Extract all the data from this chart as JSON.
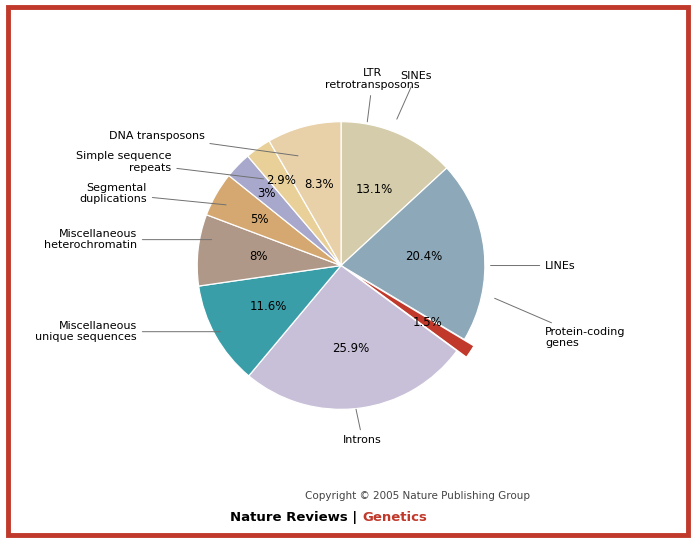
{
  "slices": [
    {
      "label": "SINEs",
      "value": 13.1,
      "color": "#d4ccaa",
      "pct": "13.1%"
    },
    {
      "label": "LINEs",
      "value": 20.4,
      "color": "#8da8b8",
      "pct": "20.4%"
    },
    {
      "label": "Protein-coding\ngenes",
      "value": 1.5,
      "color": "#c0392b",
      "pct": "1.5%"
    },
    {
      "label": "Introns",
      "value": 25.9,
      "color": "#c8c0d8",
      "pct": "25.9%"
    },
    {
      "label": "Miscellaneous\nunique sequences",
      "value": 11.6,
      "color": "#3a9ea8",
      "pct": "11.6%"
    },
    {
      "label": "Miscellaneous\nheterochromatin",
      "value": 8.0,
      "color": "#b09888",
      "pct": "8%"
    },
    {
      "label": "Segmental\nduplications",
      "value": 5.0,
      "color": "#d4a870",
      "pct": "5%"
    },
    {
      "label": "Simple sequence\nrepeats",
      "value": 3.0,
      "color": "#a8a8cc",
      "pct": "3%"
    },
    {
      "label": "DNA transposons",
      "value": 2.9,
      "color": "#e8d098",
      "pct": "2.9%"
    },
    {
      "label": "LTR\nretrotransposons",
      "value": 8.3,
      "color": "#e8d0a8",
      "pct": "8.3%"
    }
  ],
  "explode_index": 2,
  "explode_amount": 0.08,
  "bg_color": "#ffffff",
  "border_color": "#c0392b",
  "copyright_text": "Copyright © 2005 Nature Publishing Group",
  "brand_text1": "Nature Reviews | ",
  "brand_text2": "Genetics",
  "brand_color2": "#c0392b",
  "startangle": 90,
  "label_fontsize": 8.0,
  "pct_fontsize": 8.5
}
